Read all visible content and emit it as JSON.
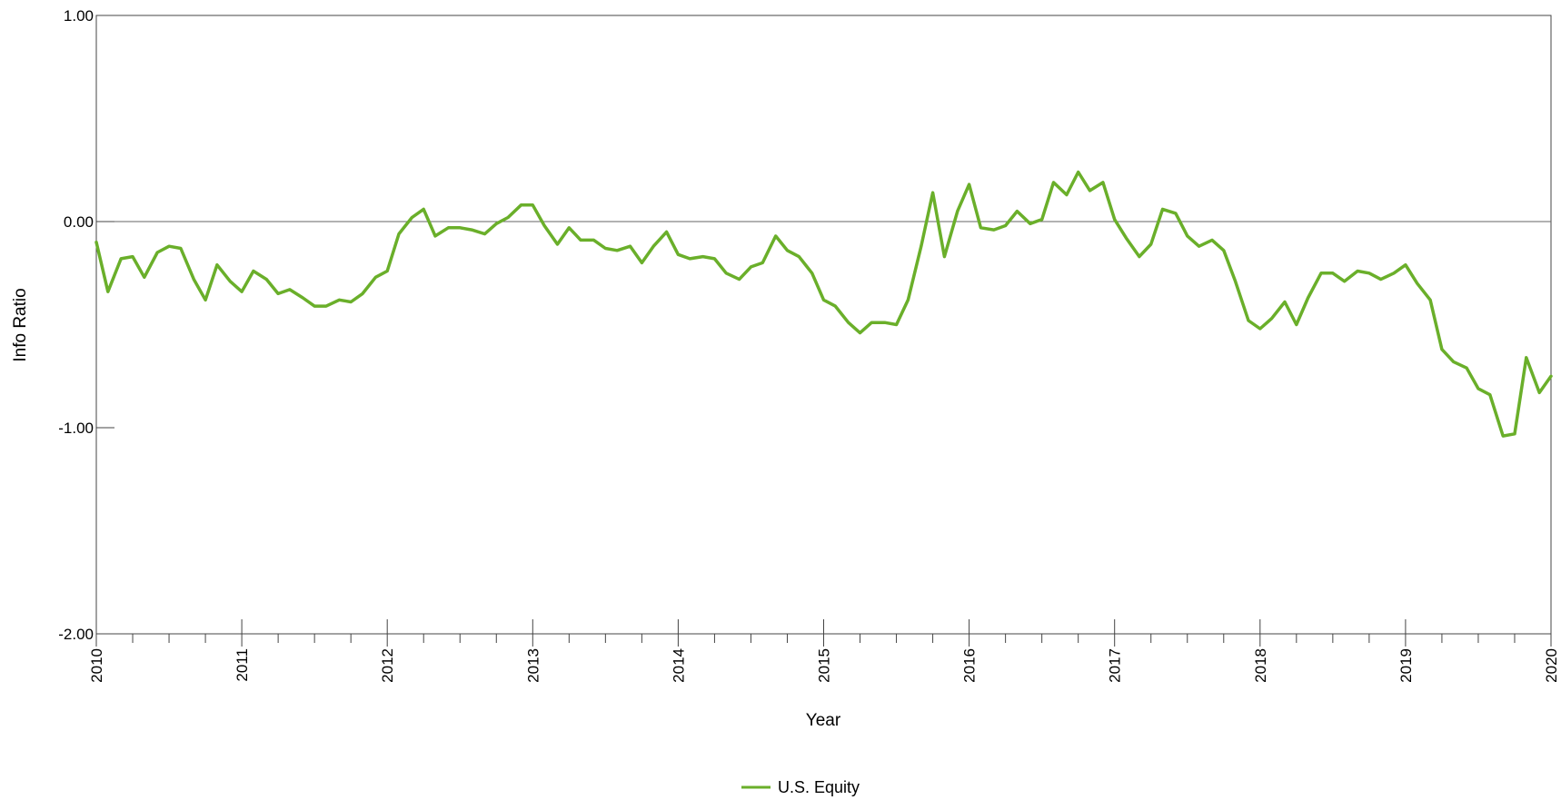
{
  "chart_data": {
    "type": "line",
    "title": "",
    "xlabel": "Year",
    "ylabel": "Info Ratio",
    "xlim": [
      2010,
      2020
    ],
    "ylim": [
      -2,
      1
    ],
    "x_tick_labels": [
      "2010",
      "2011",
      "2012",
      "2013",
      "2014",
      "2015",
      "2016",
      "2017",
      "2018",
      "2019",
      "2020"
    ],
    "y_tick_labels": [
      "1.00",
      "0.00",
      "-1.00",
      "-2.00"
    ],
    "y_tick_values": [
      1,
      0,
      -1,
      -2
    ],
    "reference_line": 0,
    "grid": false,
    "legend_position": "bottom-center",
    "series": [
      {
        "name": "U.S. Equity",
        "color": "#6aaf2a",
        "points": [
          [
            2010.0,
            -0.1
          ],
          [
            2010.08,
            -0.34
          ],
          [
            2010.17,
            -0.18
          ],
          [
            2010.25,
            -0.17
          ],
          [
            2010.33,
            -0.27
          ],
          [
            2010.42,
            -0.15
          ],
          [
            2010.5,
            -0.12
          ],
          [
            2010.58,
            -0.13
          ],
          [
            2010.67,
            -0.28
          ],
          [
            2010.75,
            -0.38
          ],
          [
            2010.83,
            -0.21
          ],
          [
            2010.92,
            -0.29
          ],
          [
            2011.0,
            -0.34
          ],
          [
            2011.08,
            -0.24
          ],
          [
            2011.17,
            -0.28
          ],
          [
            2011.25,
            -0.35
          ],
          [
            2011.33,
            -0.33
          ],
          [
            2011.42,
            -0.37
          ],
          [
            2011.5,
            -0.41
          ],
          [
            2011.58,
            -0.41
          ],
          [
            2011.67,
            -0.38
          ],
          [
            2011.75,
            -0.39
          ],
          [
            2011.83,
            -0.35
          ],
          [
            2011.92,
            -0.27
          ],
          [
            2012.0,
            -0.24
          ],
          [
            2012.08,
            -0.06
          ],
          [
            2012.17,
            0.02
          ],
          [
            2012.25,
            0.06
          ],
          [
            2012.33,
            -0.07
          ],
          [
            2012.42,
            -0.03
          ],
          [
            2012.5,
            -0.03
          ],
          [
            2012.58,
            -0.04
          ],
          [
            2012.67,
            -0.06
          ],
          [
            2012.75,
            -0.01
          ],
          [
            2012.83,
            0.02
          ],
          [
            2012.92,
            0.08
          ],
          [
            2013.0,
            0.08
          ],
          [
            2013.08,
            -0.02
          ],
          [
            2013.17,
            -0.11
          ],
          [
            2013.25,
            -0.03
          ],
          [
            2013.33,
            -0.09
          ],
          [
            2013.42,
            -0.09
          ],
          [
            2013.5,
            -0.13
          ],
          [
            2013.58,
            -0.14
          ],
          [
            2013.67,
            -0.12
          ],
          [
            2013.75,
            -0.2
          ],
          [
            2013.83,
            -0.12
          ],
          [
            2013.92,
            -0.05
          ],
          [
            2014.0,
            -0.16
          ],
          [
            2014.08,
            -0.18
          ],
          [
            2014.17,
            -0.17
          ],
          [
            2014.25,
            -0.18
          ],
          [
            2014.33,
            -0.25
          ],
          [
            2014.42,
            -0.28
          ],
          [
            2014.5,
            -0.22
          ],
          [
            2014.58,
            -0.2
          ],
          [
            2014.67,
            -0.07
          ],
          [
            2014.75,
            -0.14
          ],
          [
            2014.83,
            -0.17
          ],
          [
            2014.92,
            -0.25
          ],
          [
            2015.0,
            -0.38
          ],
          [
            2015.08,
            -0.41
          ],
          [
            2015.17,
            -0.49
          ],
          [
            2015.25,
            -0.54
          ],
          [
            2015.33,
            -0.49
          ],
          [
            2015.42,
            -0.49
          ],
          [
            2015.5,
            -0.5
          ],
          [
            2015.58,
            -0.38
          ],
          [
            2015.67,
            -0.12
          ],
          [
            2015.75,
            0.14
          ],
          [
            2015.83,
            -0.17
          ],
          [
            2015.92,
            0.05
          ],
          [
            2016.0,
            0.18
          ],
          [
            2016.08,
            -0.03
          ],
          [
            2016.17,
            -0.04
          ],
          [
            2016.25,
            -0.02
          ],
          [
            2016.33,
            0.05
          ],
          [
            2016.42,
            -0.01
          ],
          [
            2016.5,
            0.01
          ],
          [
            2016.58,
            0.19
          ],
          [
            2016.67,
            0.13
          ],
          [
            2016.75,
            0.24
          ],
          [
            2016.83,
            0.15
          ],
          [
            2016.92,
            0.19
          ],
          [
            2017.0,
            0.01
          ],
          [
            2017.08,
            -0.08
          ],
          [
            2017.17,
            -0.17
          ],
          [
            2017.25,
            -0.11
          ],
          [
            2017.33,
            0.06
          ],
          [
            2017.42,
            0.04
          ],
          [
            2017.5,
            -0.07
          ],
          [
            2017.58,
            -0.12
          ],
          [
            2017.67,
            -0.09
          ],
          [
            2017.75,
            -0.14
          ],
          [
            2017.83,
            -0.29
          ],
          [
            2017.92,
            -0.48
          ],
          [
            2018.0,
            -0.52
          ],
          [
            2018.08,
            -0.47
          ],
          [
            2018.17,
            -0.39
          ],
          [
            2018.25,
            -0.5
          ],
          [
            2018.33,
            -0.37
          ],
          [
            2018.42,
            -0.25
          ],
          [
            2018.5,
            -0.25
          ],
          [
            2018.58,
            -0.29
          ],
          [
            2018.67,
            -0.24
          ],
          [
            2018.75,
            -0.25
          ],
          [
            2018.83,
            -0.28
          ],
          [
            2018.92,
            -0.25
          ],
          [
            2019.0,
            -0.21
          ],
          [
            2019.08,
            -0.3
          ],
          [
            2019.17,
            -0.38
          ],
          [
            2019.25,
            -0.62
          ],
          [
            2019.33,
            -0.68
          ],
          [
            2019.42,
            -0.71
          ],
          [
            2019.5,
            -0.81
          ],
          [
            2019.58,
            -0.84
          ],
          [
            2019.67,
            -1.04
          ],
          [
            2019.75,
            -1.03
          ],
          [
            2019.83,
            -0.66
          ],
          [
            2019.92,
            -0.83
          ],
          [
            2020.0,
            -0.75
          ]
        ]
      }
    ]
  }
}
